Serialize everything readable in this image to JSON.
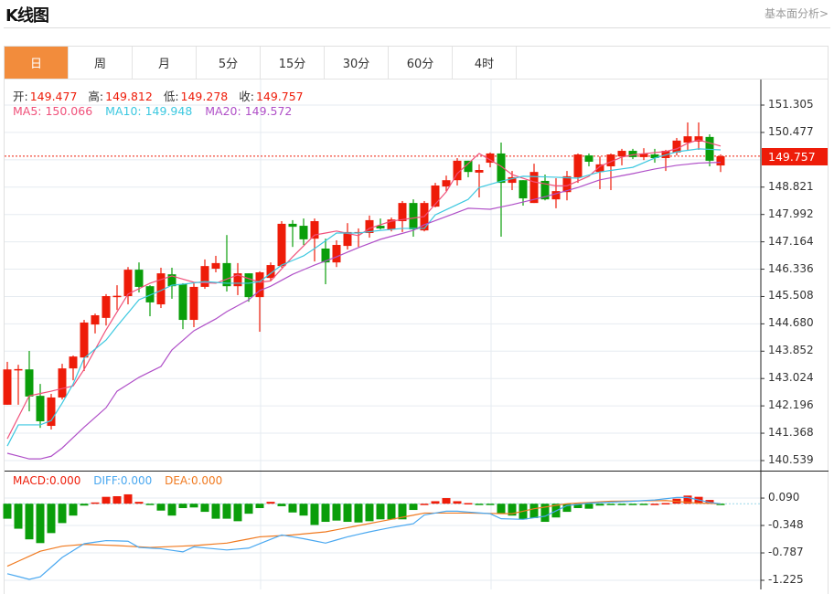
{
  "header": {
    "title": "K线图",
    "link": "基本面分析>"
  },
  "tabs": [
    {
      "label": "日",
      "active": true
    },
    {
      "label": "周"
    },
    {
      "label": "月"
    },
    {
      "label": "5分"
    },
    {
      "label": "15分"
    },
    {
      "label": "30分"
    },
    {
      "label": "60分"
    },
    {
      "label": "4时"
    }
  ],
  "ohlc": {
    "open_label": "开:",
    "open": "149.477",
    "high_label": "高:",
    "high": "149.812",
    "low_label": "低:",
    "low": "149.278",
    "close_label": "收:",
    "close": "149.757"
  },
  "ma": {
    "ma5": "MA5: 150.066",
    "ma10": "MA10: 149.948",
    "ma20": "MA20: 149.572"
  },
  "macd_legend": {
    "macd": "MACD:0.000",
    "diff": "DIFF:0.000",
    "dea": "DEA:0.000"
  },
  "current_price": "149.757",
  "colors": {
    "up": "#EE1C09",
    "down": "#0A9E0A",
    "ma5": "#F0507A",
    "ma10": "#3CC8E0",
    "ma20": "#B050C8",
    "diff": "#4AA8F0",
    "dea": "#F07A20",
    "accent": "#F28C3C"
  },
  "chart_data": {
    "type": "candlestick",
    "price_axis": {
      "range": [
        140.539,
        151.305
      ],
      "ticks": [
        "151.305",
        "150.477",
        "148.821",
        "147.992",
        "147.164",
        "146.336",
        "145.508",
        "144.680",
        "143.852",
        "143.024",
        "142.196",
        "141.368",
        "140.539"
      ]
    },
    "macd_axis": {
      "ticks": [
        "0.090",
        "-0.348",
        "-0.787",
        "-1.225"
      ]
    },
    "candles_ocLH": [
      [
        142.23,
        143.3,
        142.23,
        143.53
      ],
      [
        143.3,
        143.31,
        142.23,
        143.44
      ],
      [
        143.3,
        142.48,
        142.03,
        143.86
      ],
      [
        142.5,
        141.73,
        141.53,
        142.86
      ],
      [
        141.59,
        142.45,
        141.48,
        142.56
      ],
      [
        142.45,
        143.33,
        142.39,
        143.47
      ],
      [
        143.33,
        143.69,
        142.97,
        143.72
      ],
      [
        143.66,
        144.72,
        143.25,
        144.8
      ],
      [
        144.66,
        144.94,
        144.39,
        144.99
      ],
      [
        144.86,
        145.52,
        144.63,
        145.58
      ],
      [
        145.52,
        145.53,
        145.1,
        145.85
      ],
      [
        145.52,
        146.32,
        145.27,
        146.4
      ],
      [
        146.32,
        145.8,
        145.63,
        146.54
      ],
      [
        145.82,
        145.33,
        144.91,
        145.85
      ],
      [
        145.27,
        146.21,
        145.16,
        146.38
      ],
      [
        146.18,
        145.82,
        145.44,
        146.38
      ],
      [
        145.88,
        144.8,
        144.52,
        145.91
      ],
      [
        144.8,
        145.8,
        144.58,
        145.93
      ],
      [
        145.8,
        146.43,
        145.74,
        146.63
      ],
      [
        146.35,
        146.52,
        146.24,
        146.74
      ],
      [
        146.52,
        145.82,
        145.66,
        147.37
      ],
      [
        145.82,
        146.21,
        145.55,
        146.52
      ],
      [
        146.21,
        145.49,
        145.35,
        146.21
      ],
      [
        145.49,
        146.24,
        144.44,
        146.27
      ],
      [
        146.07,
        146.46,
        145.99,
        146.54
      ],
      [
        146.43,
        147.71,
        146.38,
        147.79
      ],
      [
        147.71,
        147.62,
        147.01,
        147.82
      ],
      [
        147.65,
        147.24,
        147.07,
        147.87
      ],
      [
        147.26,
        147.79,
        146.57,
        147.87
      ],
      [
        146.96,
        146.54,
        145.88,
        147.26
      ],
      [
        146.54,
        147.07,
        146.4,
        147.21
      ],
      [
        147.04,
        147.46,
        146.93,
        147.73
      ],
      [
        147.43,
        147.46,
        147.01,
        147.57
      ],
      [
        147.43,
        147.82,
        147.29,
        147.96
      ],
      [
        147.65,
        147.57,
        147.54,
        147.87
      ],
      [
        147.54,
        147.84,
        147.48,
        147.9
      ],
      [
        147.79,
        148.34,
        147.46,
        148.4
      ],
      [
        148.34,
        147.54,
        147.32,
        148.45
      ],
      [
        147.51,
        148.34,
        147.48,
        148.4
      ],
      [
        148.23,
        148.87,
        148.21,
        148.95
      ],
      [
        148.84,
        149.03,
        148.7,
        149.17
      ],
      [
        149.03,
        149.62,
        148.87,
        149.7
      ],
      [
        149.62,
        149.28,
        149.12,
        149.62
      ],
      [
        149.26,
        149.34,
        148.51,
        149.51
      ],
      [
        149.56,
        149.84,
        149.42,
        149.87
      ],
      [
        149.84,
        148.95,
        147.32,
        150.17
      ],
      [
        148.95,
        149.12,
        148.73,
        149.31
      ],
      [
        149.03,
        148.48,
        148.26,
        149.03
      ],
      [
        148.34,
        149.28,
        148.34,
        149.53
      ],
      [
        149.01,
        148.45,
        148.42,
        149.2
      ],
      [
        148.45,
        148.7,
        148.18,
        149.09
      ],
      [
        148.67,
        149.15,
        148.42,
        149.31
      ],
      [
        149.12,
        149.81,
        148.95,
        149.84
      ],
      [
        149.78,
        149.59,
        149.45,
        149.84
      ],
      [
        149.28,
        149.51,
        148.76,
        149.75
      ],
      [
        149.45,
        149.81,
        148.73,
        149.84
      ],
      [
        149.75,
        149.92,
        149.48,
        149.98
      ],
      [
        149.92,
        149.73,
        149.67,
        149.98
      ],
      [
        149.73,
        149.84,
        149.64,
        150.0
      ],
      [
        149.81,
        149.7,
        149.56,
        149.98
      ],
      [
        149.7,
        149.92,
        149.31,
        149.95
      ],
      [
        149.87,
        150.23,
        149.78,
        150.31
      ],
      [
        150.17,
        150.36,
        149.92,
        150.78
      ],
      [
        150.2,
        150.36,
        149.95,
        150.78
      ],
      [
        150.34,
        149.62,
        149.45,
        150.42
      ],
      [
        149.477,
        149.757,
        149.278,
        149.812
      ]
    ],
    "ma5_points": [
      [
        0,
        141.2
      ],
      [
        2,
        142.5
      ],
      [
        4,
        142.64
      ],
      [
        6,
        142.8
      ],
      [
        7,
        143.3
      ],
      [
        9,
        144.5
      ],
      [
        11,
        145.58
      ],
      [
        13,
        145.91
      ],
      [
        15,
        146.13
      ],
      [
        17,
        145.94
      ],
      [
        19,
        145.91
      ],
      [
        21,
        146.16
      ],
      [
        23,
        145.94
      ],
      [
        24,
        145.98
      ],
      [
        26,
        146.71
      ],
      [
        28,
        147.37
      ],
      [
        30,
        147.49
      ],
      [
        32,
        147.35
      ],
      [
        33,
        147.57
      ],
      [
        35,
        147.79
      ],
      [
        38,
        147.93
      ],
      [
        40,
        148.68
      ],
      [
        41,
        149.23
      ],
      [
        43,
        149.84
      ],
      [
        45,
        149.45
      ],
      [
        46,
        149.2
      ],
      [
        48,
        148.98
      ],
      [
        50,
        148.86
      ],
      [
        51,
        148.86
      ],
      [
        53,
        149.15
      ],
      [
        54,
        149.45
      ],
      [
        56,
        149.73
      ],
      [
        57,
        149.8
      ],
      [
        60,
        149.9
      ],
      [
        61,
        149.98
      ],
      [
        62,
        150.15
      ],
      [
        63,
        150.25
      ],
      [
        65,
        150.066
      ]
    ],
    "ma10_points": [
      [
        0,
        140.98
      ],
      [
        1,
        141.62
      ],
      [
        3,
        141.62
      ],
      [
        4,
        141.75
      ],
      [
        5,
        142.28
      ],
      [
        6,
        142.86
      ],
      [
        7,
        143.64
      ],
      [
        9,
        144.19
      ],
      [
        10,
        144.61
      ],
      [
        12,
        145.41
      ],
      [
        14,
        145.69
      ],
      [
        15,
        145.85
      ],
      [
        16,
        145.88
      ],
      [
        18,
        145.96
      ],
      [
        20,
        145.91
      ],
      [
        22,
        145.91
      ],
      [
        23,
        145.96
      ],
      [
        25,
        146.46
      ],
      [
        27,
        146.74
      ],
      [
        28,
        146.96
      ],
      [
        30,
        147.43
      ],
      [
        32,
        147.43
      ],
      [
        34,
        147.51
      ],
      [
        36,
        147.57
      ],
      [
        38,
        147.57
      ],
      [
        39,
        147.98
      ],
      [
        42,
        148.45
      ],
      [
        43,
        148.81
      ],
      [
        45,
        149.0
      ],
      [
        47,
        149.15
      ],
      [
        50,
        149.12
      ],
      [
        52,
        149.09
      ],
      [
        54,
        149.28
      ],
      [
        57,
        149.42
      ],
      [
        59,
        149.7
      ],
      [
        61,
        149.89
      ],
      [
        63,
        149.98
      ],
      [
        65,
        149.948
      ]
    ],
    "ma20_points": [
      [
        0,
        140.76
      ],
      [
        2,
        140.59
      ],
      [
        3,
        140.59
      ],
      [
        4,
        140.67
      ],
      [
        5,
        140.92
      ],
      [
        7,
        141.55
      ],
      [
        9,
        142.14
      ],
      [
        10,
        142.64
      ],
      [
        12,
        143.06
      ],
      [
        14,
        143.39
      ],
      [
        15,
        143.89
      ],
      [
        17,
        144.47
      ],
      [
        19,
        144.83
      ],
      [
        20,
        145.05
      ],
      [
        22,
        145.41
      ],
      [
        23,
        145.69
      ],
      [
        24,
        145.82
      ],
      [
        26,
        146.18
      ],
      [
        28,
        146.46
      ],
      [
        30,
        146.71
      ],
      [
        32,
        146.99
      ],
      [
        34,
        147.24
      ],
      [
        37,
        147.51
      ],
      [
        38,
        147.68
      ],
      [
        40,
        147.93
      ],
      [
        42,
        148.18
      ],
      [
        44,
        148.15
      ],
      [
        46,
        148.29
      ],
      [
        49,
        148.53
      ],
      [
        52,
        148.81
      ],
      [
        54,
        149.04
      ],
      [
        57,
        149.23
      ],
      [
        59,
        149.37
      ],
      [
        61,
        149.48
      ],
      [
        63,
        149.55
      ],
      [
        65,
        149.572
      ]
    ],
    "macd_hist": [
      -0.24,
      -0.4,
      -0.57,
      -0.63,
      -0.47,
      -0.31,
      -0.19,
      -0.03,
      0.02,
      0.11,
      0.12,
      0.15,
      0.03,
      -0.02,
      -0.11,
      -0.19,
      -0.07,
      -0.06,
      -0.13,
      -0.24,
      -0.24,
      -0.28,
      -0.16,
      -0.07,
      0.03,
      -0.04,
      -0.14,
      -0.19,
      -0.34,
      -0.29,
      -0.27,
      -0.29,
      -0.3,
      -0.28,
      -0.25,
      -0.25,
      -0.25,
      -0.1,
      0.0,
      0.04,
      0.09,
      0.04,
      0.01,
      -0.01,
      -0.01,
      -0.16,
      -0.19,
      -0.25,
      -0.23,
      -0.29,
      -0.22,
      -0.13,
      -0.07,
      -0.08,
      -0.03,
      -0.02,
      -0.02,
      -0.02,
      -0.01,
      0.0,
      0.01,
      0.08,
      0.13,
      0.11,
      0.06,
      -0.02
    ],
    "diff_points": [
      [
        0,
        -1.12
      ],
      [
        2,
        -1.21
      ],
      [
        3,
        -1.17
      ],
      [
        5,
        -0.86
      ],
      [
        7,
        -0.64
      ],
      [
        9,
        -0.59
      ],
      [
        11,
        -0.6
      ],
      [
        12,
        -0.7
      ],
      [
        14,
        -0.72
      ],
      [
        16,
        -0.77
      ],
      [
        17,
        -0.69
      ],
      [
        20,
        -0.74
      ],
      [
        22,
        -0.71
      ],
      [
        24,
        -0.57
      ],
      [
        25,
        -0.5
      ],
      [
        27,
        -0.56
      ],
      [
        29,
        -0.63
      ],
      [
        31,
        -0.53
      ],
      [
        33,
        -0.45
      ],
      [
        35,
        -0.38
      ],
      [
        37,
        -0.32
      ],
      [
        38,
        -0.18
      ],
      [
        40,
        -0.12
      ],
      [
        41,
        -0.12
      ],
      [
        44,
        -0.16
      ],
      [
        45,
        -0.24
      ],
      [
        47,
        -0.25
      ],
      [
        49,
        -0.2
      ],
      [
        51,
        -0.03
      ],
      [
        53,
        0.01
      ],
      [
        57,
        0.04
      ],
      [
        59,
        0.06
      ],
      [
        61,
        0.1
      ],
      [
        62,
        0.1
      ],
      [
        64,
        0.02
      ],
      [
        65,
        0.0
      ]
    ],
    "dea_points": [
      [
        0,
        -1.0
      ],
      [
        3,
        -0.76
      ],
      [
        5,
        -0.68
      ],
      [
        7,
        -0.65
      ],
      [
        10,
        -0.67
      ],
      [
        13,
        -0.7
      ],
      [
        17,
        -0.67
      ],
      [
        20,
        -0.63
      ],
      [
        23,
        -0.53
      ],
      [
        26,
        -0.5
      ],
      [
        29,
        -0.45
      ],
      [
        32,
        -0.35
      ],
      [
        35,
        -0.25
      ],
      [
        38,
        -0.15
      ],
      [
        42,
        -0.15
      ],
      [
        46,
        -0.16
      ],
      [
        48,
        -0.08
      ],
      [
        51,
        0.0
      ],
      [
        55,
        0.04
      ],
      [
        60,
        0.05
      ],
      [
        63,
        0.01
      ],
      [
        65,
        0.0
      ]
    ]
  }
}
